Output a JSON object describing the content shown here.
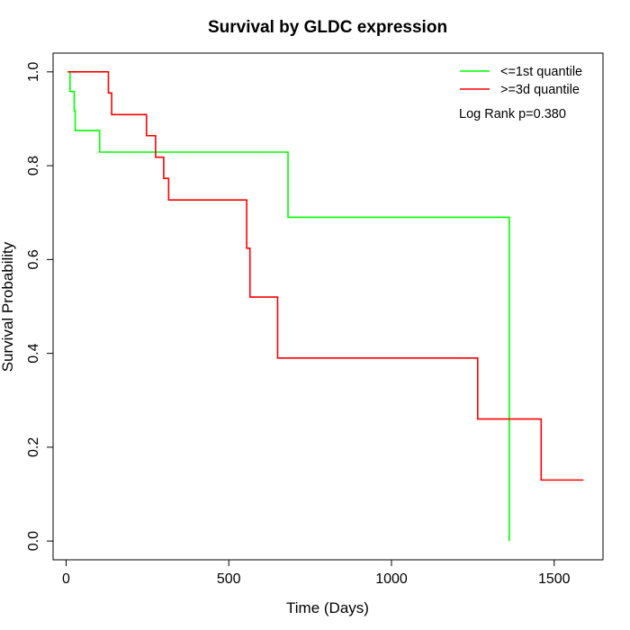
{
  "chart_data": {
    "type": "line",
    "title": "Survival by GLDC expression",
    "xlabel": "Time (Days)",
    "ylabel": "Survival Probability",
    "xlim": [
      -40,
      1650
    ],
    "ylim": [
      -0.04,
      1.04
    ],
    "xticks": [
      0,
      500,
      1000,
      1500
    ],
    "xtick_labels": [
      "0",
      "500",
      "1000",
      "1500"
    ],
    "yticks": [
      0.0,
      0.2,
      0.4,
      0.6,
      0.8,
      1.0
    ],
    "ytick_labels": [
      "0.0",
      "0.2",
      "0.4",
      "0.6",
      "0.8",
      "1.0"
    ],
    "grid": false,
    "legend_position": "top-right",
    "annotation": "Log Rank p=0.380",
    "series": [
      {
        "name": "<=1st quantile",
        "color": "#00ff00",
        "step_x": [
          5,
          12,
          25,
          28,
          103,
          682,
          1362,
          1362
        ],
        "step_y": [
          1.0,
          0.958,
          0.917,
          0.875,
          0.829,
          0.69,
          0.69,
          0.0
        ]
      },
      {
        "name": ">=3d quantile",
        "color": "#ff0000",
        "step_x": [
          5,
          130,
          140,
          247,
          275,
          300,
          315,
          555,
          565,
          650,
          1265,
          1460,
          1590
        ],
        "step_y": [
          1.0,
          0.955,
          0.909,
          0.864,
          0.818,
          0.773,
          0.727,
          0.624,
          0.52,
          0.39,
          0.26,
          0.13,
          0.13
        ]
      }
    ]
  }
}
